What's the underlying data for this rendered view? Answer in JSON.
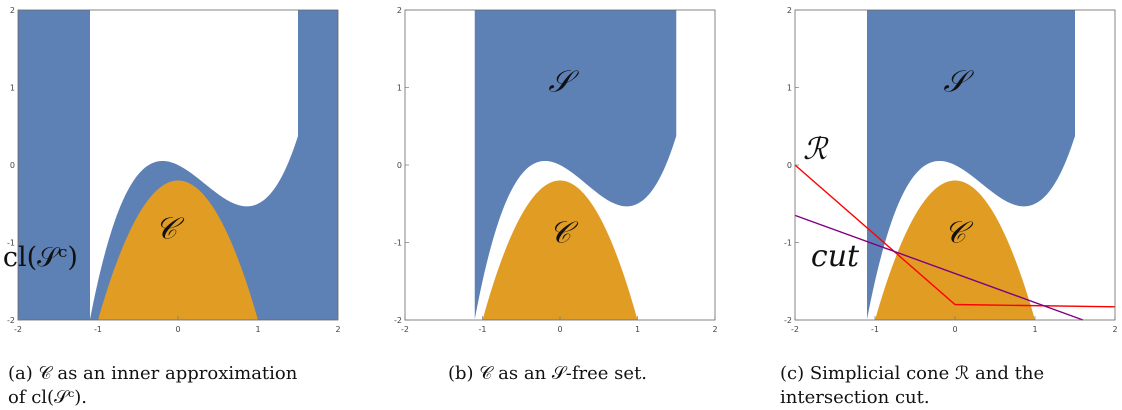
{
  "panels": [
    {
      "id": "a",
      "caption": "(a) 𝒞 as an inner approximation of cl(𝒮ᶜ).",
      "caption_lines": [
        "(a) 𝒞 as an inner approximation",
        "of cl(𝒮ᶜ)."
      ],
      "labels": {
        "region_C": "𝒞",
        "complement_S": "cl(𝒮ᶜ)"
      }
    },
    {
      "id": "b",
      "caption": "(b) 𝒞 as an 𝒮-free set.",
      "caption_lines": [
        "(b) 𝒞 as an 𝒮-free set."
      ],
      "labels": {
        "region_S": "𝒮",
        "region_C": "𝒞"
      }
    },
    {
      "id": "c",
      "caption": "(c) Simplicial cone ℛ and the intersection cut.",
      "caption_lines": [
        "(c) Simplicial cone ℛ and the",
        "intersection cut."
      ],
      "labels": {
        "region_S": "𝒮",
        "region_C": "𝒞",
        "cone_R": "ℛ",
        "cut": "cut"
      }
    }
  ],
  "axes": {
    "x_ticks": [
      "-2",
      "-1",
      "0",
      "1",
      "2"
    ],
    "y_ticks": [
      "2",
      "1",
      "0",
      "-1",
      "-2"
    ],
    "xlim": [
      -2,
      2
    ],
    "ylim": [
      -2,
      2
    ]
  },
  "colors": {
    "S": "#5e81b5",
    "C": "#e19c24",
    "cone": "#ff0000",
    "cut": "#800080",
    "frame": "#666666"
  }
}
